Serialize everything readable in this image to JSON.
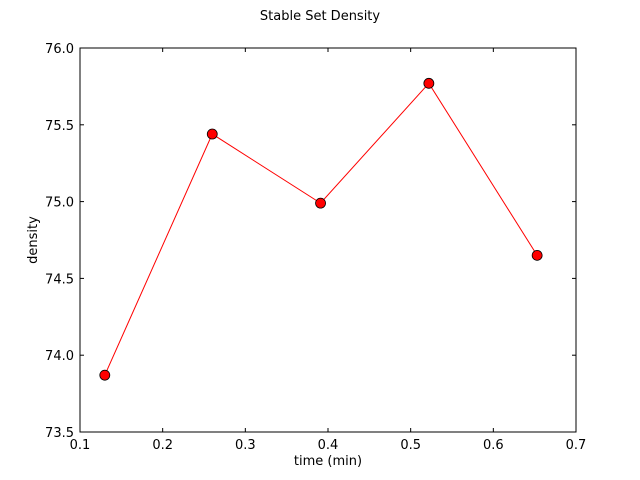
{
  "chart_data": {
    "type": "line",
    "title": "Stable Set Density",
    "xlabel": "time (min)",
    "ylabel": "density",
    "xlim": [
      0.1,
      0.7
    ],
    "ylim": [
      73.5,
      76.0
    ],
    "xticks": [
      "0.1",
      "0.2",
      "0.3",
      "0.4",
      "0.5",
      "0.6",
      "0.7"
    ],
    "yticks": [
      "73.5",
      "74.0",
      "74.5",
      "75.0",
      "75.5",
      "76.0"
    ],
    "grid": false,
    "series": [
      {
        "color": "#ff0000",
        "marker": "circle",
        "x": [
          0.13,
          0.26,
          0.391,
          0.522,
          0.653
        ],
        "y": [
          73.87,
          75.44,
          74.99,
          75.77,
          74.65
        ]
      }
    ]
  }
}
